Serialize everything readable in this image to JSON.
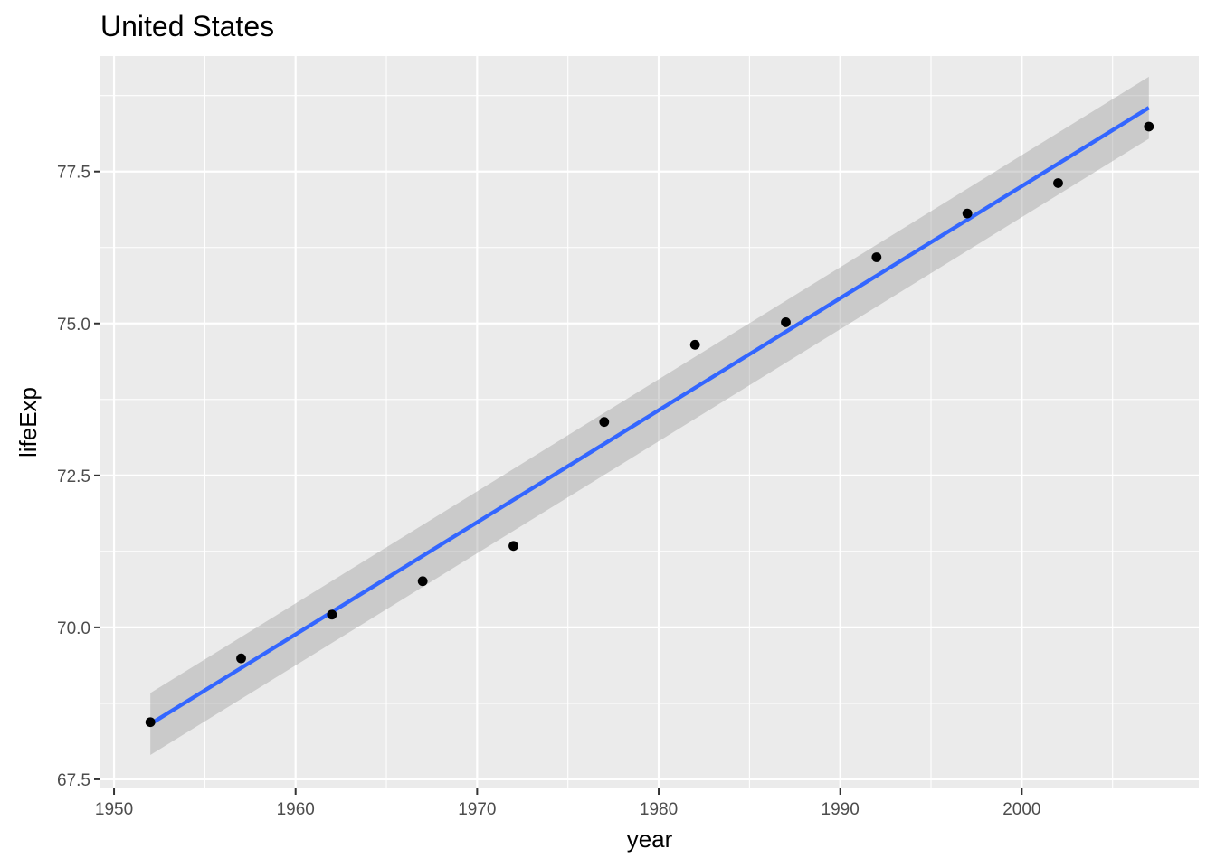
{
  "chart_data": {
    "type": "scatter",
    "title": "United States",
    "xlabel": "year",
    "ylabel": "lifeExp",
    "xlim": [
      1949.25,
      2009.75
    ],
    "ylim": [
      67.35,
      79.4
    ],
    "x_ticks": [
      {
        "value": 1950,
        "label": "1950"
      },
      {
        "value": 1960,
        "label": "1960"
      },
      {
        "value": 1970,
        "label": "1970"
      },
      {
        "value": 1980,
        "label": "1980"
      },
      {
        "value": 1990,
        "label": "1990"
      },
      {
        "value": 2000,
        "label": "2000"
      }
    ],
    "y_ticks": [
      {
        "value": 67.5,
        "label": "67.5"
      },
      {
        "value": 70.0,
        "label": "70.0"
      },
      {
        "value": 72.5,
        "label": "72.5"
      },
      {
        "value": 75.0,
        "label": "75.0"
      },
      {
        "value": 77.5,
        "label": "77.5"
      }
    ],
    "x_minor_ticks": [
      1955,
      1965,
      1975,
      1985,
      1995,
      2005
    ],
    "y_minor_ticks": [
      68.75,
      71.25,
      73.75,
      76.25,
      78.75
    ],
    "grid": true,
    "points": [
      {
        "x": 1952,
        "y": 68.44
      },
      {
        "x": 1957,
        "y": 69.49
      },
      {
        "x": 1962,
        "y": 70.21
      },
      {
        "x": 1967,
        "y": 70.76
      },
      {
        "x": 1972,
        "y": 71.34
      },
      {
        "x": 1977,
        "y": 73.38
      },
      {
        "x": 1982,
        "y": 74.65
      },
      {
        "x": 1987,
        "y": 75.02
      },
      {
        "x": 1992,
        "y": 76.09
      },
      {
        "x": 1997,
        "y": 76.81
      },
      {
        "x": 2002,
        "y": 77.31
      },
      {
        "x": 2007,
        "y": 78.24
      }
    ],
    "trend": {
      "method": "linear",
      "start": {
        "x": 1952,
        "y": 68.41,
        "lower": 67.9,
        "upper": 68.92
      },
      "end": {
        "x": 2007,
        "y": 78.55,
        "lower": 78.04,
        "upper": 79.06
      }
    },
    "colors": {
      "panel": "#ebebeb",
      "grid": "#ffffff",
      "points": "#000000",
      "trend_line": "#3366ff",
      "confidence_band": "#999999",
      "tick_label": "#4d4d4d",
      "tick_mark": "#333333"
    }
  }
}
